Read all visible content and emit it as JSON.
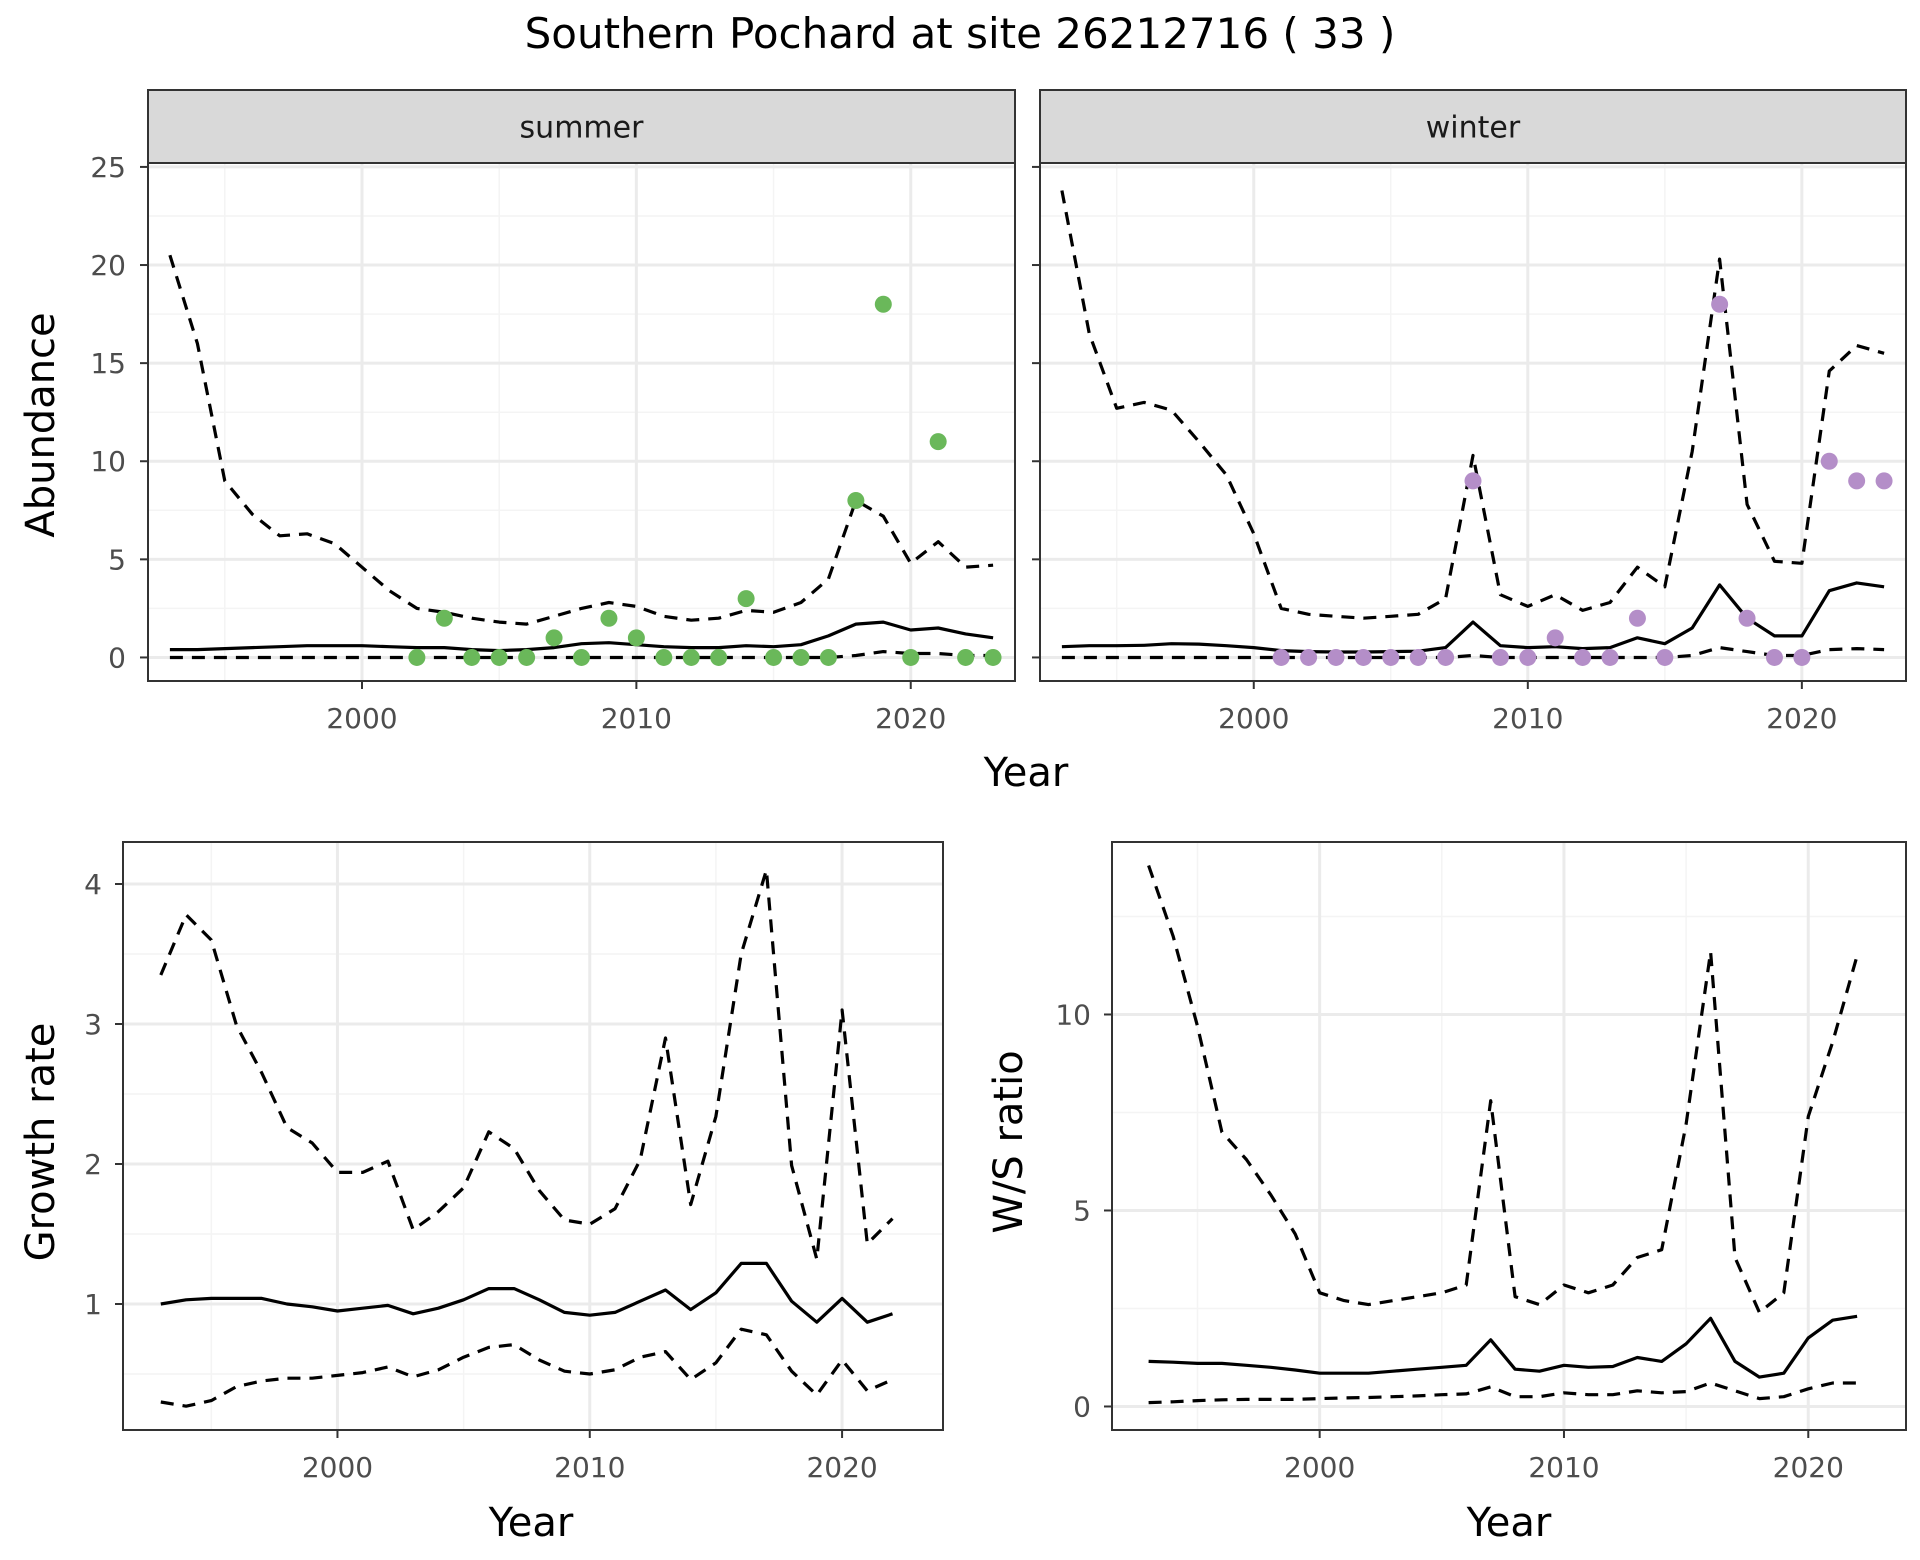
{
  "figure": {
    "title": "Southern Pochard at site 26212716 ( 33 )"
  },
  "colors": {
    "summer_points": "#6ab85a",
    "winter_points": "#b48ec8",
    "line": "#000000",
    "grid_major": "#ebebeb",
    "grid_minor": "#f4f4f4",
    "strip_fill": "#d9d9d9",
    "strip_border": "#333333"
  },
  "chart_data": [
    {
      "type": "line",
      "panel": "summer",
      "strip_label": "summer",
      "xlabel": "Year",
      "ylabel": "Abundance",
      "xlim": [
        1992.2,
        2023.8
      ],
      "ylim": [
        -1.2,
        25.2
      ],
      "xticks": [
        2000,
        2010,
        2020
      ],
      "yticks": [
        0,
        5,
        10,
        15,
        20,
        25
      ],
      "grid": true,
      "series": [
        {
          "role": "estimate",
          "style": "solid",
          "x": [
            1993,
            1994,
            1995,
            1996,
            1997,
            1998,
            1999,
            2000,
            2001,
            2002,
            2003,
            2004,
            2005,
            2006,
            2007,
            2008,
            2009,
            2010,
            2011,
            2012,
            2013,
            2014,
            2015,
            2016,
            2017,
            2018,
            2019,
            2020,
            2021,
            2022,
            2023
          ],
          "y": [
            0.4,
            0.4,
            0.45,
            0.5,
            0.55,
            0.6,
            0.6,
            0.6,
            0.55,
            0.5,
            0.5,
            0.4,
            0.35,
            0.4,
            0.5,
            0.7,
            0.75,
            0.65,
            0.55,
            0.5,
            0.5,
            0.6,
            0.55,
            0.65,
            1.1,
            1.7,
            1.8,
            1.4,
            1.5,
            1.2,
            1.0
          ]
        },
        {
          "role": "upper",
          "style": "dashed",
          "x": [
            1993,
            1994,
            1995,
            1996,
            1997,
            1998,
            1999,
            2000,
            2001,
            2002,
            2003,
            2004,
            2005,
            2006,
            2007,
            2008,
            2009,
            2010,
            2011,
            2012,
            2013,
            2014,
            2015,
            2016,
            2017,
            2018,
            2019,
            2020,
            2021,
            2022,
            2023
          ],
          "y": [
            20.5,
            16,
            9,
            7.3,
            6.2,
            6.3,
            5.8,
            4.6,
            3.4,
            2.5,
            2.3,
            2.0,
            1.8,
            1.7,
            2.1,
            2.5,
            2.8,
            2.6,
            2.1,
            1.9,
            2.0,
            2.4,
            2.3,
            2.8,
            4.0,
            8.0,
            7.2,
            4.8,
            5.9,
            4.6,
            4.7
          ]
        },
        {
          "role": "lower",
          "style": "dashed",
          "x": [
            1993,
            1994,
            1995,
            1996,
            1997,
            1998,
            1999,
            2000,
            2001,
            2002,
            2003,
            2004,
            2005,
            2006,
            2007,
            2008,
            2009,
            2010,
            2011,
            2012,
            2013,
            2014,
            2015,
            2016,
            2017,
            2018,
            2019,
            2020,
            2021,
            2022,
            2023
          ],
          "y": [
            0,
            0,
            0,
            0,
            0,
            0,
            0,
            0,
            0,
            0,
            0,
            0,
            0,
            0,
            0,
            0,
            0,
            0,
            0,
            0,
            0,
            0,
            0,
            0,
            0,
            0.1,
            0.3,
            0.2,
            0.2,
            0.1,
            0.1
          ]
        }
      ],
      "points": {
        "x": [
          2002,
          2003,
          2004,
          2005,
          2006,
          2007,
          2008,
          2009,
          2010,
          2011,
          2012,
          2013,
          2014,
          2015,
          2016,
          2017,
          2018,
          2019,
          2020,
          2021,
          2022,
          2023
        ],
        "y": [
          0,
          2,
          0,
          0,
          0,
          1,
          0,
          2,
          1,
          0,
          0,
          0,
          3,
          0,
          0,
          0,
          8,
          18,
          0,
          11,
          0,
          0
        ]
      }
    },
    {
      "type": "line",
      "panel": "winter",
      "strip_label": "winter",
      "xlabel": "Year",
      "ylabel": "Abundance",
      "xlim": [
        1992.2,
        2023.8
      ],
      "ylim": [
        -1.2,
        25.2
      ],
      "xticks": [
        2000,
        2010,
        2020
      ],
      "yticks": [
        0,
        5,
        10,
        15,
        20,
        25
      ],
      "grid": true,
      "series": [
        {
          "role": "estimate",
          "style": "solid",
          "x": [
            1993,
            1994,
            1995,
            1996,
            1997,
            1998,
            1999,
            2000,
            2001,
            2002,
            2003,
            2004,
            2005,
            2006,
            2007,
            2008,
            2009,
            2010,
            2011,
            2012,
            2013,
            2014,
            2015,
            2016,
            2017,
            2018,
            2019,
            2020,
            2021,
            2022,
            2023
          ],
          "y": [
            0.55,
            0.6,
            0.6,
            0.62,
            0.7,
            0.68,
            0.6,
            0.5,
            0.35,
            0.3,
            0.28,
            0.28,
            0.3,
            0.32,
            0.5,
            1.8,
            0.6,
            0.5,
            0.55,
            0.45,
            0.5,
            1.0,
            0.7,
            1.5,
            3.7,
            2.0,
            1.1,
            1.1,
            3.4,
            3.8,
            3.6
          ]
        },
        {
          "role": "upper",
          "style": "dashed",
          "x": [
            1993,
            1994,
            1995,
            1996,
            1997,
            1998,
            1999,
            2000,
            2001,
            2002,
            2003,
            2004,
            2005,
            2006,
            2007,
            2008,
            2009,
            2010,
            2011,
            2012,
            2013,
            2014,
            2015,
            2016,
            2017,
            2018,
            2019,
            2020,
            2021,
            2022,
            2023
          ],
          "y": [
            23.8,
            16.5,
            12.7,
            13,
            12.6,
            11,
            9.3,
            6.3,
            2.5,
            2.2,
            2.1,
            2.0,
            2.1,
            2.2,
            3.0,
            10.3,
            3.2,
            2.6,
            3.2,
            2.4,
            2.8,
            4.6,
            3.6,
            10.5,
            20.3,
            7.8,
            4.9,
            4.8,
            14.6,
            15.9,
            15.5
          ]
        },
        {
          "role": "lower",
          "style": "dashed",
          "x": [
            1993,
            1994,
            1995,
            1996,
            1997,
            1998,
            1999,
            2000,
            2001,
            2002,
            2003,
            2004,
            2005,
            2006,
            2007,
            2008,
            2009,
            2010,
            2011,
            2012,
            2013,
            2014,
            2015,
            2016,
            2017,
            2018,
            2019,
            2020,
            2021,
            2022,
            2023
          ],
          "y": [
            0,
            0,
            0,
            0,
            0,
            0,
            0,
            0,
            0,
            0,
            0,
            0,
            0,
            0,
            0,
            0.1,
            0,
            0,
            0,
            0,
            0,
            0,
            0,
            0.1,
            0.5,
            0.3,
            0.1,
            0.1,
            0.4,
            0.45,
            0.4
          ]
        }
      ],
      "points": {
        "x": [
          2001,
          2002,
          2003,
          2004,
          2005,
          2006,
          2007,
          2008,
          2009,
          2010,
          2011,
          2012,
          2013,
          2014,
          2015,
          2017,
          2018,
          2019,
          2020,
          2021,
          2022,
          2023
        ],
        "y": [
          0,
          0,
          0,
          0,
          0,
          0,
          0,
          9,
          0,
          0,
          1,
          0,
          0,
          2,
          0,
          18,
          2,
          0,
          0,
          10,
          9,
          9
        ]
      }
    },
    {
      "type": "line",
      "panel": "growth",
      "xlabel": "Year",
      "ylabel": "Growth rate",
      "xlim": [
        1991.5,
        2024.0
      ],
      "ylim": [
        0.1,
        4.3
      ],
      "xticks": [
        2000,
        2010,
        2020
      ],
      "yticks": [
        1,
        2,
        3,
        4
      ],
      "grid": true,
      "series": [
        {
          "role": "estimate",
          "style": "solid",
          "x": [
            1993,
            1994,
            1995,
            1996,
            1997,
            1998,
            1999,
            2000,
            2001,
            2002,
            2003,
            2004,
            2005,
            2006,
            2007,
            2008,
            2009,
            2010,
            2011,
            2012,
            2013,
            2014,
            2015,
            2016,
            2017,
            2018,
            2019,
            2020,
            2021,
            2022
          ],
          "y": [
            1.0,
            1.03,
            1.04,
            1.04,
            1.04,
            1.0,
            0.98,
            0.95,
            0.97,
            0.99,
            0.93,
            0.97,
            1.03,
            1.11,
            1.11,
            1.03,
            0.94,
            0.92,
            0.94,
            1.02,
            1.1,
            0.96,
            1.08,
            1.29,
            1.29,
            1.02,
            0.87,
            1.04,
            0.87,
            0.93
          ]
        },
        {
          "role": "upper",
          "style": "dashed",
          "x": [
            1993,
            1994,
            1995,
            1996,
            1997,
            1998,
            1999,
            2000,
            2001,
            2002,
            2003,
            2004,
            2005,
            2006,
            2007,
            2008,
            2009,
            2010,
            2011,
            2012,
            2013,
            2014,
            2015,
            2016,
            2017,
            2018,
            2019,
            2020,
            2021,
            2022
          ],
          "y": [
            3.35,
            3.78,
            3.6,
            2.99,
            2.65,
            2.26,
            2.15,
            1.94,
            1.94,
            2.02,
            1.53,
            1.66,
            1.83,
            2.23,
            2.11,
            1.81,
            1.6,
            1.57,
            1.68,
            2.03,
            2.9,
            1.71,
            2.34,
            3.5,
            4.1,
            1.99,
            1.32,
            3.1,
            1.43,
            1.61
          ]
        },
        {
          "role": "lower",
          "style": "dashed",
          "x": [
            1993,
            1994,
            1995,
            1996,
            1997,
            1998,
            1999,
            2000,
            2001,
            2002,
            2003,
            2004,
            2005,
            2006,
            2007,
            2008,
            2009,
            2010,
            2011,
            2012,
            2013,
            2014,
            2015,
            2016,
            2017,
            2018,
            2019,
            2020,
            2021,
            2022
          ],
          "y": [
            0.3,
            0.27,
            0.31,
            0.41,
            0.45,
            0.47,
            0.47,
            0.49,
            0.51,
            0.55,
            0.48,
            0.53,
            0.62,
            0.69,
            0.71,
            0.6,
            0.52,
            0.5,
            0.53,
            0.62,
            0.66,
            0.46,
            0.58,
            0.82,
            0.78,
            0.52,
            0.35,
            0.6,
            0.38,
            0.46
          ]
        }
      ]
    },
    {
      "type": "line",
      "panel": "ratio",
      "xlabel": "Year",
      "ylabel": "W/S ratio",
      "xlim": [
        1991.5,
        2024.0
      ],
      "ylim": [
        -0.6,
        14.4
      ],
      "xticks": [
        2000,
        2010,
        2020
      ],
      "yticks": [
        0,
        5,
        10
      ],
      "grid": true,
      "series": [
        {
          "role": "estimate",
          "style": "solid",
          "x": [
            1993,
            1994,
            1995,
            1996,
            1997,
            1998,
            1999,
            2000,
            2001,
            2002,
            2003,
            2004,
            2005,
            2006,
            2007,
            2008,
            2009,
            2010,
            2011,
            2012,
            2013,
            2014,
            2015,
            2016,
            2017,
            2018,
            2019,
            2020,
            2021,
            2022
          ],
          "y": [
            1.15,
            1.13,
            1.1,
            1.1,
            1.05,
            1.0,
            0.93,
            0.85,
            0.85,
            0.85,
            0.9,
            0.95,
            1.0,
            1.05,
            1.7,
            0.95,
            0.9,
            1.05,
            1.0,
            1.02,
            1.25,
            1.15,
            1.6,
            2.25,
            1.15,
            0.75,
            0.85,
            1.75,
            2.2,
            2.3
          ]
        },
        {
          "role": "upper",
          "style": "dashed",
          "x": [
            1993,
            1994,
            1995,
            1996,
            1997,
            1998,
            1999,
            2000,
            2001,
            2002,
            2003,
            2004,
            2005,
            2006,
            2007,
            2008,
            2009,
            2010,
            2011,
            2012,
            2013,
            2014,
            2015,
            2016,
            2017,
            2018,
            2019,
            2020,
            2021,
            2022
          ],
          "y": [
            13.8,
            12.0,
            9.7,
            7.0,
            6.3,
            5.4,
            4.4,
            2.9,
            2.7,
            2.6,
            2.7,
            2.8,
            2.9,
            3.1,
            7.8,
            2.8,
            2.6,
            3.1,
            2.9,
            3.1,
            3.8,
            4.0,
            7.2,
            11.6,
            3.8,
            2.4,
            2.9,
            7.4,
            9.3,
            11.5
          ]
        },
        {
          "role": "lower",
          "style": "dashed",
          "x": [
            1993,
            1994,
            1995,
            1996,
            1997,
            1998,
            1999,
            2000,
            2001,
            2002,
            2003,
            2004,
            2005,
            2006,
            2007,
            2008,
            2009,
            2010,
            2011,
            2012,
            2013,
            2014,
            2015,
            2016,
            2017,
            2018,
            2019,
            2020,
            2021,
            2022
          ],
          "y": [
            0.1,
            0.12,
            0.15,
            0.17,
            0.18,
            0.18,
            0.18,
            0.2,
            0.22,
            0.23,
            0.25,
            0.27,
            0.3,
            0.32,
            0.5,
            0.25,
            0.25,
            0.35,
            0.3,
            0.3,
            0.4,
            0.35,
            0.38,
            0.6,
            0.4,
            0.2,
            0.25,
            0.45,
            0.6,
            0.6
          ]
        }
      ]
    }
  ]
}
